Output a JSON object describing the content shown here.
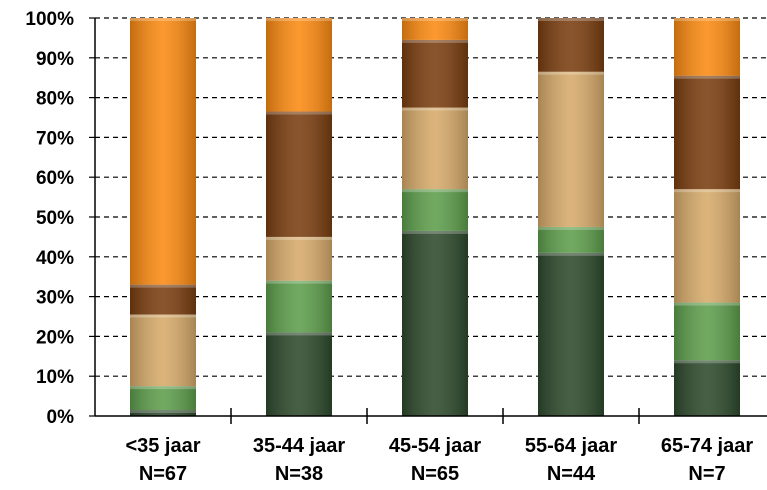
{
  "chart_data": {
    "type": "bar",
    "stacked": true,
    "percent": true,
    "title": "",
    "xlabel": "",
    "ylabel": "",
    "ylim": [
      0,
      100
    ],
    "ytick_labels": [
      "0%",
      "10%",
      "20%",
      "30%",
      "40%",
      "50%",
      "60%",
      "70%",
      "80%",
      "90%",
      "100%"
    ],
    "grid": "horizontal-dashed",
    "legend": "none",
    "categories": [
      {
        "label": "<35 jaar",
        "n": "N=67"
      },
      {
        "label": "35-44 jaar",
        "n": "N=38"
      },
      {
        "label": "45-54 jaar",
        "n": "N=65"
      },
      {
        "label": "55-64 jaar",
        "n": "N=44"
      },
      {
        "label": "65-74 jaar",
        "n": "N=7"
      }
    ],
    "series": [
      {
        "color": "#2e4a2c",
        "values": [
          1.5,
          21,
          46.5,
          41,
          14
        ]
      },
      {
        "color": "#5e9e4c",
        "values": [
          6,
          13,
          10.5,
          6.5,
          14.5
        ]
      },
      {
        "color": "#d6aa6a",
        "values": [
          18,
          11,
          20.5,
          39,
          28.5
        ]
      },
      {
        "color": "#7a3e10",
        "values": [
          7.5,
          31.5,
          17,
          13.5,
          28.5
        ]
      },
      {
        "color": "#fb8a12",
        "values": [
          67,
          23.5,
          5.5,
          0,
          14.5
        ]
      }
    ]
  }
}
